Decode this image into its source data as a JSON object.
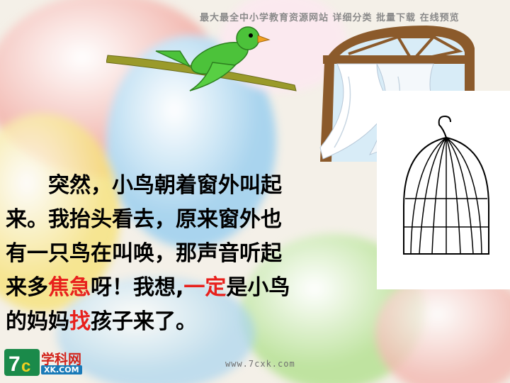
{
  "banner": "最大最全中小学教育资源网站  详细分类  批量下载  在线预览",
  "story": {
    "lines": [
      [
        {
          "t": "　　突然，小鸟朝着窗外叫起",
          "red": false
        }
      ],
      [
        {
          "t": "来。我抬头看去，原来窗外也",
          "red": false
        }
      ],
      [
        {
          "t": "有一只鸟在叫唤，那声音听起",
          "red": false
        }
      ],
      [
        {
          "t": "来多",
          "red": false
        },
        {
          "t": "焦急",
          "red": true
        },
        {
          "t": "呀！我想,",
          "red": false
        },
        {
          "t": "一定",
          "red": true
        },
        {
          "t": "是小鸟",
          "red": false
        }
      ],
      [
        {
          "t": "的妈妈",
          "red": false
        },
        {
          "t": "找",
          "red": true
        },
        {
          "t": "孩子来了。",
          "red": false
        }
      ]
    ]
  },
  "logo": {
    "main": "学科网",
    "sub": "XK.COM",
    "mark": "7C"
  },
  "footer_url": "www.7cxk.com",
  "colors": {
    "highlight": "#e8201c",
    "bird": "#4cc23a",
    "branch": "#9a9a2a",
    "frame": "#8b5a2b"
  }
}
